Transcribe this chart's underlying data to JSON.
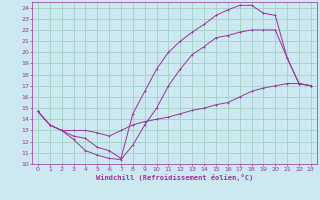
{
  "xlabel": "Windchill (Refroidissement éolien,°C)",
  "background_color": "#cce8f0",
  "grid_color": "#99ccbb",
  "line_color": "#993399",
  "xlim": [
    -0.5,
    23.5
  ],
  "ylim": [
    10,
    24.5
  ],
  "xticks": [
    0,
    1,
    2,
    3,
    4,
    5,
    6,
    7,
    8,
    9,
    10,
    11,
    12,
    13,
    14,
    15,
    16,
    17,
    18,
    19,
    20,
    21,
    22,
    23
  ],
  "yticks": [
    10,
    11,
    12,
    13,
    14,
    15,
    16,
    17,
    18,
    19,
    20,
    21,
    22,
    23,
    24
  ],
  "line1_x": [
    0,
    1,
    2,
    3,
    4,
    5,
    6,
    7,
    8,
    9,
    10,
    11,
    12,
    13,
    14,
    15,
    16,
    17,
    18,
    19,
    20,
    21,
    22,
    23
  ],
  "line1_y": [
    14.7,
    13.5,
    13.0,
    12.2,
    11.2,
    10.8,
    10.5,
    10.4,
    11.7,
    13.5,
    15.0,
    17.0,
    18.5,
    19.8,
    20.5,
    21.3,
    21.5,
    21.8,
    22.0,
    22.0,
    22.0,
    19.5,
    17.2,
    17.0
  ],
  "line2_x": [
    0,
    1,
    2,
    3,
    4,
    5,
    6,
    7,
    8,
    9,
    10,
    11,
    12,
    13,
    14,
    15,
    16,
    17,
    18,
    19,
    20,
    21,
    22,
    23
  ],
  "line2_y": [
    14.7,
    13.5,
    13.0,
    12.5,
    12.3,
    11.5,
    11.2,
    10.5,
    14.5,
    16.5,
    18.5,
    20.0,
    21.0,
    21.8,
    22.5,
    23.3,
    23.8,
    24.2,
    24.2,
    23.5,
    23.3,
    19.5,
    17.2,
    17.0
  ],
  "line3_x": [
    0,
    1,
    2,
    3,
    4,
    5,
    6,
    7,
    8,
    9,
    10,
    11,
    12,
    13,
    14,
    15,
    16,
    17,
    18,
    19,
    20,
    21,
    22,
    23
  ],
  "line3_y": [
    14.7,
    13.5,
    13.0,
    13.0,
    13.0,
    12.8,
    12.5,
    13.0,
    13.5,
    13.8,
    14.0,
    14.2,
    14.5,
    14.8,
    15.0,
    15.3,
    15.5,
    16.0,
    16.5,
    16.8,
    17.0,
    17.2,
    17.2,
    17.0
  ]
}
